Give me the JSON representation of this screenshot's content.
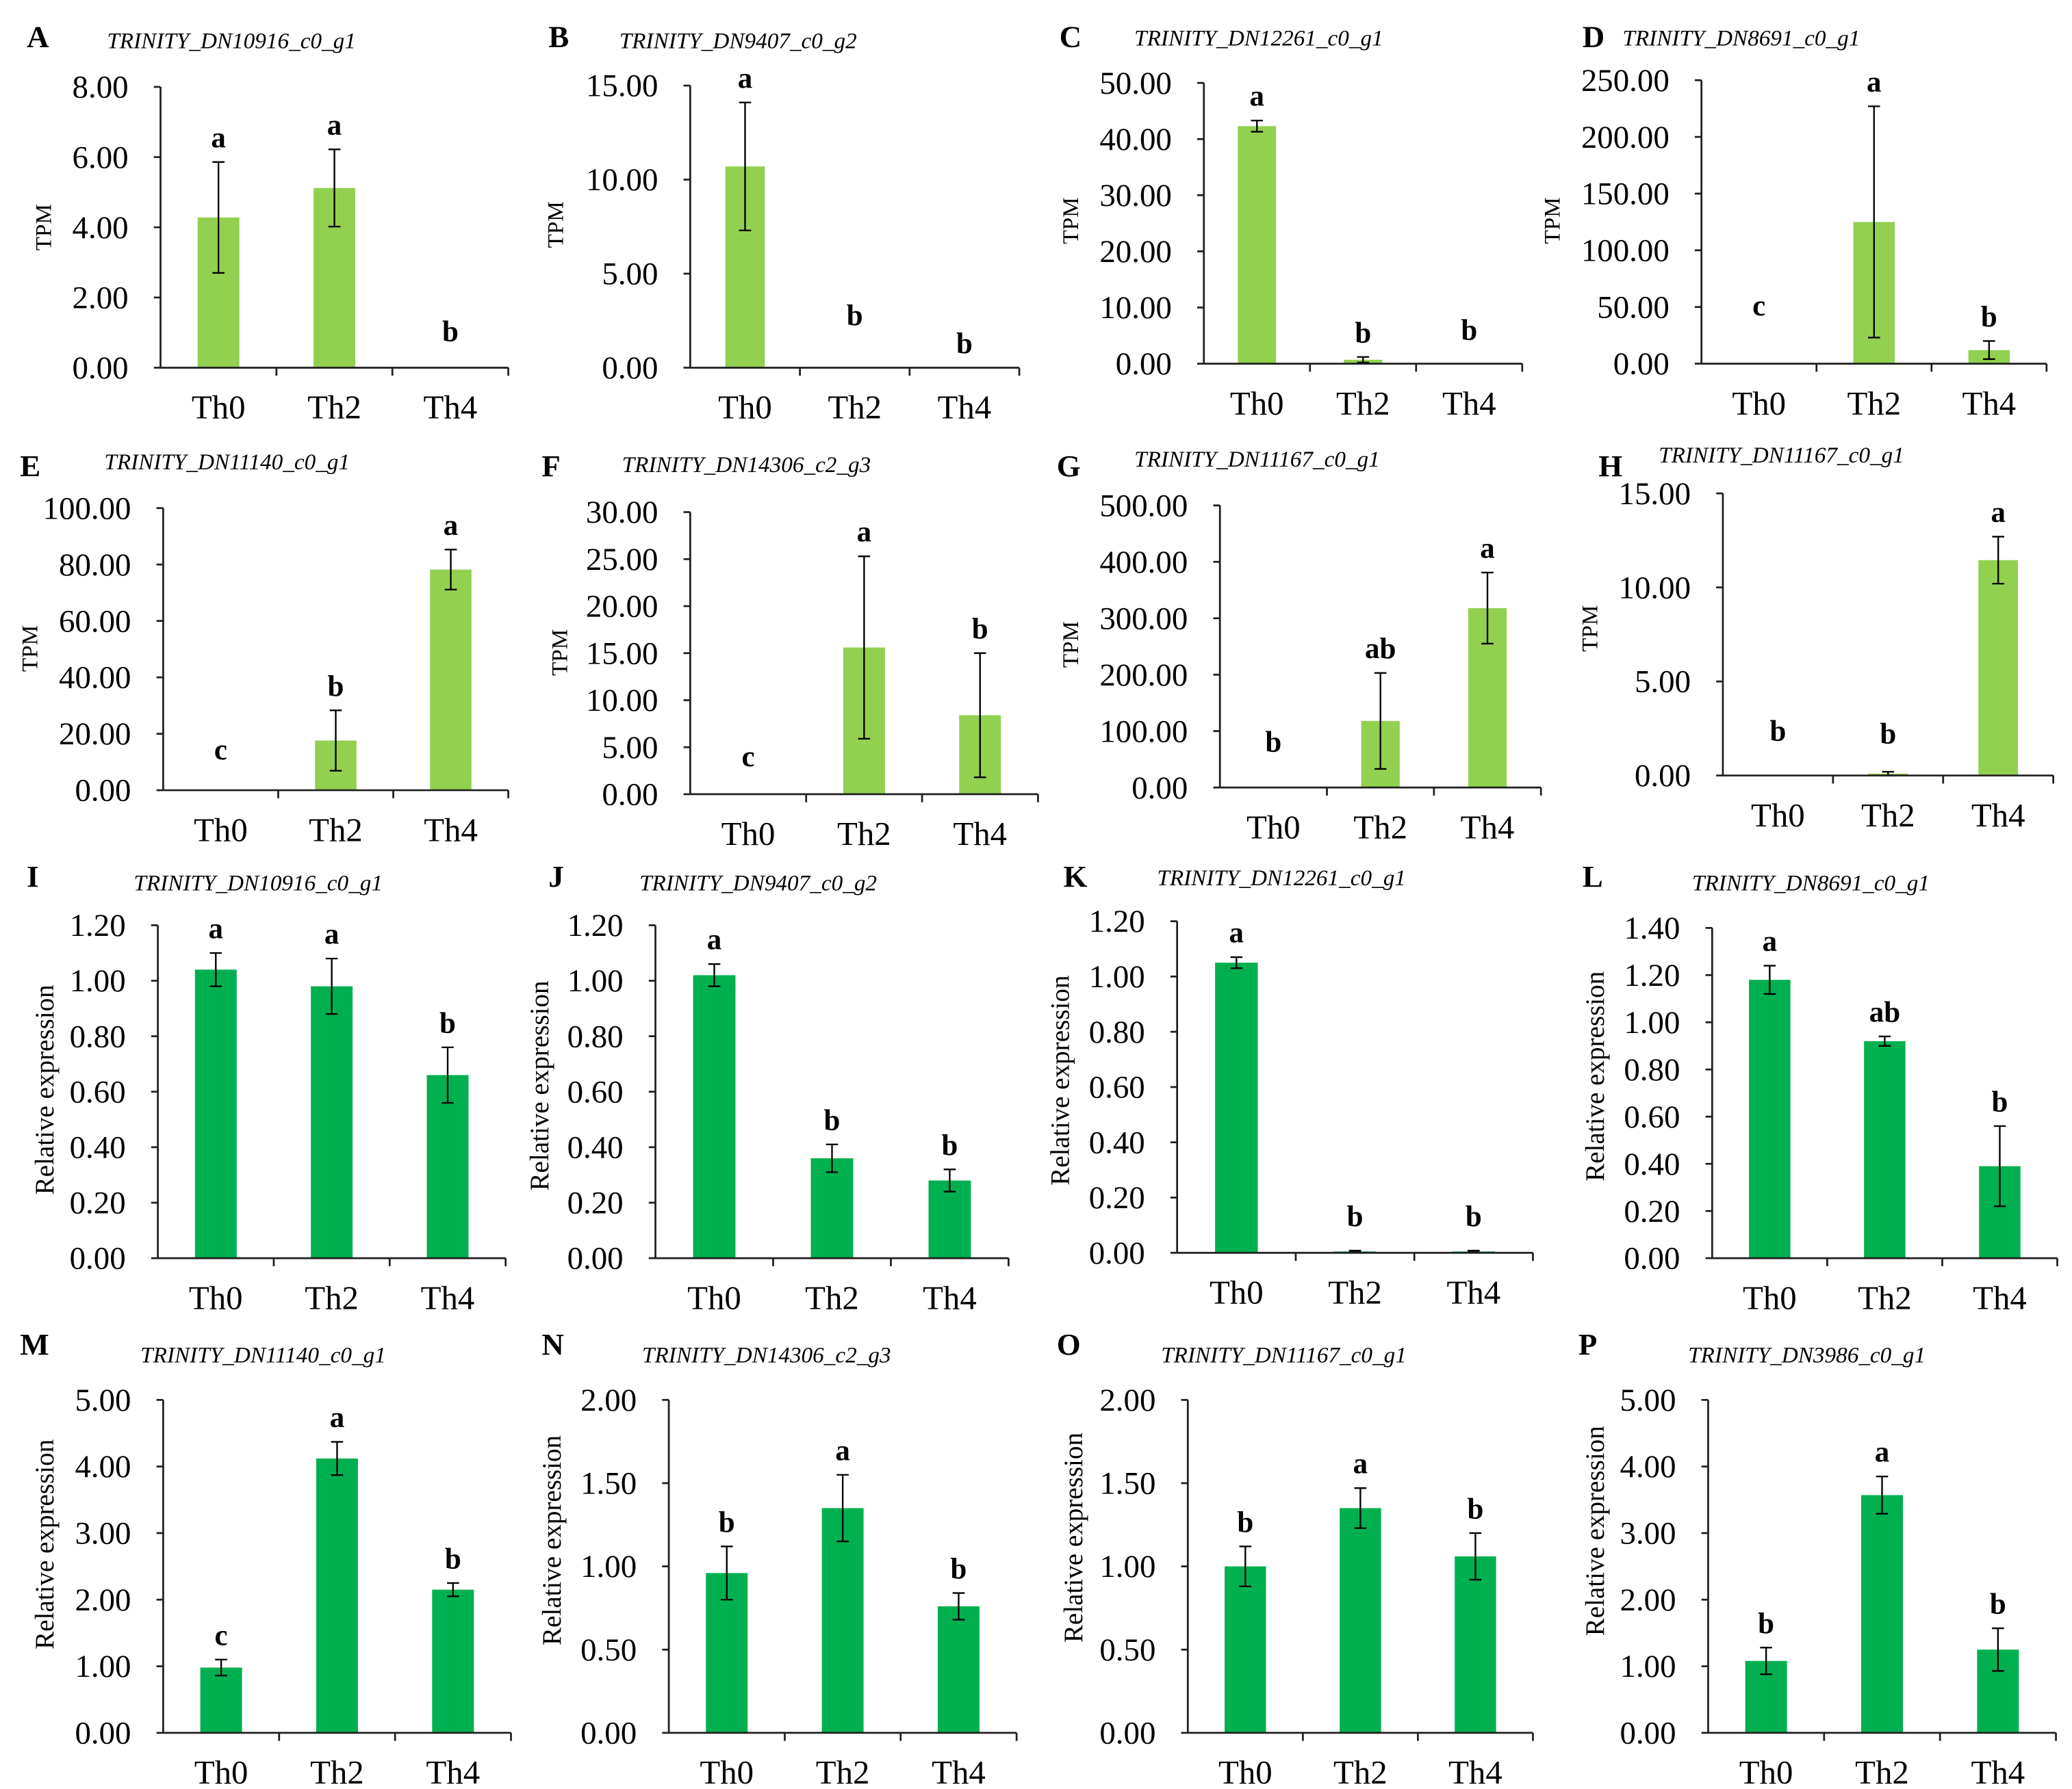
{
  "chart_data": [
    {
      "type": "bar",
      "panel": "A",
      "title": "TRINITY_DN10916_c0_g1",
      "ylabel": "TPM",
      "categories": [
        "Th0",
        "Th2",
        "Th4"
      ],
      "values": [
        4.28,
        5.12,
        0
      ],
      "errors": [
        1.58,
        1.1,
        0
      ],
      "significance": [
        "a",
        "a",
        "b"
      ],
      "ylim": [
        0,
        8
      ],
      "yticks": [
        "0.00",
        "2.00",
        "4.00",
        "6.00",
        "8.00"
      ],
      "bar_color": "#92d050"
    },
    {
      "type": "bar",
      "panel": "B",
      "title": "TRINITY_DN9407_c0_g2",
      "ylabel": "TPM",
      "categories": [
        "Th0",
        "Th2",
        "Th4"
      ],
      "values": [
        10.7,
        0,
        0
      ],
      "errors": [
        3.4,
        0,
        0
      ],
      "significance": [
        "a",
        "b",
        "b"
      ],
      "ylim": [
        0,
        15
      ],
      "yticks": [
        "0.00",
        "5.00",
        "10.00",
        "15.00"
      ],
      "bar_color": "#92d050"
    },
    {
      "type": "bar",
      "panel": "C",
      "title": "TRINITY_DN12261_c0_g1",
      "ylabel": "TPM",
      "categories": [
        "Th0",
        "Th2",
        "Th4"
      ],
      "values": [
        42.3,
        0.7,
        0
      ],
      "errors": [
        1.0,
        0.5,
        0
      ],
      "significance": [
        "a",
        "b",
        "b"
      ],
      "ylim": [
        0,
        50
      ],
      "yticks": [
        "0.00",
        "10.00",
        "20.00",
        "30.00",
        "40.00",
        "50.00"
      ],
      "bar_color": "#92d050"
    },
    {
      "type": "bar",
      "panel": "D",
      "title": "TRINITY_DN8691_c0_g1",
      "ylabel": "TPM",
      "categories": [
        "Th0",
        "Th2",
        "Th4"
      ],
      "values": [
        0,
        125,
        12
      ],
      "errors": [
        0,
        102,
        8
      ],
      "significance": [
        "c",
        "a",
        "b"
      ],
      "ylim": [
        0,
        250
      ],
      "yticks": [
        "0.00",
        "50.00",
        "100.00",
        "150.00",
        "200.00",
        "250.00"
      ],
      "bar_color": "#92d050"
    },
    {
      "type": "bar",
      "panel": "E",
      "title": "TRINITY_DN11140_c0_g1",
      "ylabel": "TPM",
      "categories": [
        "Th0",
        "Th2",
        "Th4"
      ],
      "values": [
        0,
        17.6,
        78.2
      ],
      "errors": [
        0,
        10.7,
        7.1
      ],
      "significance": [
        "c",
        "b",
        "a"
      ],
      "ylim": [
        0,
        100
      ],
      "yticks": [
        "0.00",
        "20.00",
        "40.00",
        "60.00",
        "80.00",
        "100.00"
      ],
      "bar_color": "#92d050"
    },
    {
      "type": "bar",
      "panel": "F",
      "title": "TRINITY_DN14306_c2_g3",
      "ylabel": "TPM",
      "categories": [
        "Th0",
        "Th2",
        "Th4"
      ],
      "values": [
        0,
        15.6,
        8.4
      ],
      "errors": [
        0,
        9.7,
        6.6
      ],
      "significance": [
        "c",
        "a",
        "b"
      ],
      "ylim": [
        0,
        30
      ],
      "yticks": [
        "0.00",
        "5.00",
        "10.00",
        "15.00",
        "20.00",
        "25.00",
        "30.00"
      ],
      "bar_color": "#92d050"
    },
    {
      "type": "bar",
      "panel": "G",
      "title": "TRINITY_DN11167_c0_g1",
      "ylabel": "TPM",
      "categories": [
        "Th0",
        "Th2",
        "Th4"
      ],
      "values": [
        0,
        118,
        318
      ],
      "errors": [
        0,
        85,
        63
      ],
      "significance": [
        "b",
        "ab",
        "a"
      ],
      "ylim": [
        0,
        500
      ],
      "yticks": [
        "0.00",
        "100.00",
        "200.00",
        "300.00",
        "400.00",
        "500.00"
      ],
      "bar_color": "#92d050"
    },
    {
      "type": "bar",
      "panel": "H",
      "title": "TRINITY_DN11167_c0_g1",
      "ylabel": "TPM",
      "categories": [
        "Th0",
        "Th2",
        "Th4"
      ],
      "values": [
        0,
        0.1,
        11.45
      ],
      "errors": [
        0,
        0.1,
        1.25
      ],
      "significance": [
        "b",
        "b",
        "a"
      ],
      "ylim": [
        0,
        15
      ],
      "yticks": [
        "0.00",
        "5.00",
        "10.00",
        "15.00"
      ],
      "bar_color": "#92d050"
    },
    {
      "type": "bar",
      "panel": "I",
      "title": "TRINITY_DN10916_c0_g1",
      "ylabel": "Relative expression",
      "categories": [
        "Th0",
        "Th2",
        "Th4"
      ],
      "values": [
        1.04,
        0.98,
        0.66
      ],
      "errors": [
        0.06,
        0.1,
        0.1
      ],
      "significance": [
        "a",
        "a",
        "b"
      ],
      "ylim": [
        0,
        1.2
      ],
      "yticks": [
        "0.00",
        "0.20",
        "0.40",
        "0.60",
        "0.80",
        "1.00",
        "1.20"
      ],
      "bar_color": "#00b050"
    },
    {
      "type": "bar",
      "panel": "J",
      "title": "TRINITY_DN9407_c0_g2",
      "ylabel": "Relative expression",
      "categories": [
        "Th0",
        "Th2",
        "Th4"
      ],
      "values": [
        1.02,
        0.36,
        0.28
      ],
      "errors": [
        0.04,
        0.05,
        0.04
      ],
      "significance": [
        "a",
        "b",
        "b"
      ],
      "ylim": [
        0,
        1.2
      ],
      "yticks": [
        "0.00",
        "0.20",
        "0.40",
        "0.60",
        "0.80",
        "1.00",
        "1.20"
      ],
      "bar_color": "#00b050"
    },
    {
      "type": "bar",
      "panel": "K",
      "title": "TRINITY_DN12261_c0_g1",
      "ylabel": "Relative expression",
      "categories": [
        "Th0",
        "Th2",
        "Th4"
      ],
      "values": [
        1.05,
        0.005,
        0.005
      ],
      "errors": [
        0.02,
        0.003,
        0.003
      ],
      "significance": [
        "a",
        "b",
        "b"
      ],
      "ylim": [
        0,
        1.2
      ],
      "yticks": [
        "0.00",
        "0.20",
        "0.40",
        "0.60",
        "0.80",
        "1.00",
        "1.20"
      ],
      "bar_color": "#00b050"
    },
    {
      "type": "bar",
      "panel": "L",
      "title": "TRINITY_DN8691_c0_g1",
      "ylabel": "Relative expression",
      "categories": [
        "Th0",
        "Th2",
        "Th4"
      ],
      "values": [
        1.18,
        0.92,
        0.39
      ],
      "errors": [
        0.06,
        0.02,
        0.17
      ],
      "significance": [
        "a",
        "ab",
        "b"
      ],
      "ylim": [
        0,
        1.4
      ],
      "yticks": [
        "0.00",
        "0.20",
        "0.40",
        "0.60",
        "0.80",
        "1.00",
        "1.20",
        "1.40"
      ],
      "bar_color": "#00b050"
    },
    {
      "type": "bar",
      "panel": "M",
      "title": "TRINITY_DN11140_c0_g1",
      "ylabel": "Relative expression",
      "categories": [
        "Th0",
        "Th2",
        "Th4"
      ],
      "values": [
        0.98,
        4.12,
        2.15
      ],
      "errors": [
        0.12,
        0.25,
        0.1
      ],
      "significance": [
        "c",
        "a",
        "b"
      ],
      "ylim": [
        0,
        5
      ],
      "yticks": [
        "0.00",
        "1.00",
        "2.00",
        "3.00",
        "4.00",
        "5.00"
      ],
      "bar_color": "#00b050"
    },
    {
      "type": "bar",
      "panel": "N",
      "title": "TRINITY_DN14306_c2_g3",
      "ylabel": "Relative expression",
      "categories": [
        "Th0",
        "Th2",
        "Th4"
      ],
      "values": [
        0.96,
        1.35,
        0.76
      ],
      "errors": [
        0.16,
        0.2,
        0.08
      ],
      "significance": [
        "b",
        "a",
        "b"
      ],
      "ylim": [
        0,
        2
      ],
      "yticks": [
        "0.00",
        "0.50",
        "1.00",
        "1.50",
        "2.00"
      ],
      "bar_color": "#00b050"
    },
    {
      "type": "bar",
      "panel": "O",
      "title": "TRINITY_DN11167_c0_g1",
      "ylabel": "Relative expression",
      "categories": [
        "Th0",
        "Th2",
        "Th4"
      ],
      "values": [
        1.0,
        1.35,
        1.06
      ],
      "errors": [
        0.12,
        0.12,
        0.14
      ],
      "significance": [
        "b",
        "a",
        "b"
      ],
      "ylim": [
        0,
        2
      ],
      "yticks": [
        "0.00",
        "0.50",
        "1.00",
        "1.50",
        "2.00"
      ],
      "bar_color": "#00b050"
    },
    {
      "type": "bar",
      "panel": "P",
      "title": "TRINITY_DN3986_c0_g1",
      "ylabel": "Relative expression",
      "categories": [
        "Th0",
        "Th2",
        "Th4"
      ],
      "values": [
        1.08,
        3.57,
        1.25
      ],
      "errors": [
        0.2,
        0.28,
        0.32
      ],
      "significance": [
        "b",
        "a",
        "b"
      ],
      "ylim": [
        0,
        5
      ],
      "yticks": [
        "0.00",
        "1.00",
        "2.00",
        "3.00",
        "4.00",
        "5.00"
      ],
      "bar_color": "#00b050"
    }
  ]
}
